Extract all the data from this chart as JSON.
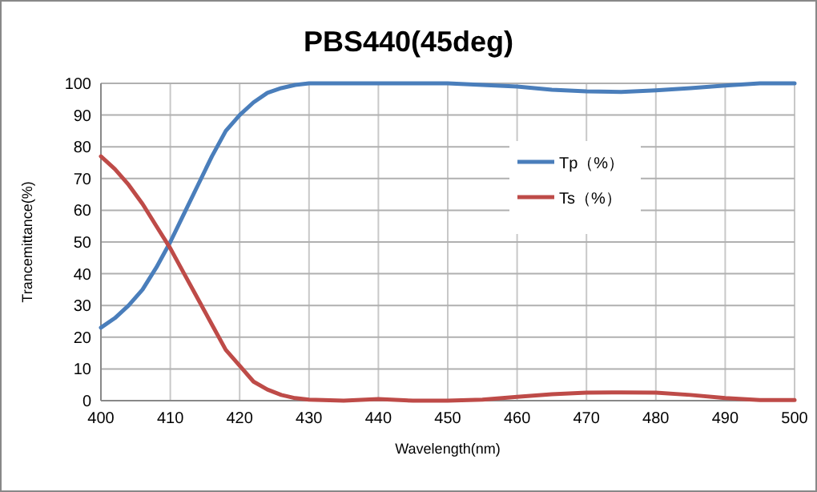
{
  "chart_data": {
    "type": "line",
    "title": "PBS440(45deg)",
    "xlabel": "Wavelength(nm)",
    "ylabel": "Trancemittance(%)",
    "x": [
      400,
      402,
      404,
      406,
      408,
      410,
      412,
      414,
      416,
      418,
      420,
      422,
      424,
      426,
      428,
      430,
      435,
      440,
      445,
      450,
      455,
      460,
      465,
      470,
      475,
      480,
      485,
      490,
      495,
      500
    ],
    "series": [
      {
        "name": "Tp（%）",
        "color": "#4a7ebb",
        "values": [
          23,
          26,
          30,
          35,
          42,
          50,
          59,
          68,
          77,
          85,
          90,
          94,
          97,
          98.5,
          99.5,
          100,
          100,
          100,
          100,
          100,
          99.5,
          99,
          98,
          97.5,
          97.3,
          97.8,
          98.5,
          99.3,
          100,
          100
        ]
      },
      {
        "name": "Ts（%）",
        "color": "#be4b48",
        "values": [
          77,
          73,
          68,
          62,
          55,
          48,
          40,
          32,
          24,
          16,
          11,
          6,
          3.5,
          1.8,
          0.8,
          0.3,
          0,
          0.5,
          0,
          0,
          0.3,
          1.2,
          2,
          2.5,
          2.6,
          2.5,
          1.8,
          0.8,
          0.2,
          0.2
        ]
      }
    ],
    "xlim": [
      400,
      500
    ],
    "ylim": [
      0,
      100
    ],
    "xticks": [
      400,
      410,
      420,
      430,
      440,
      450,
      460,
      470,
      480,
      490,
      500
    ],
    "yticks": [
      0,
      10,
      20,
      30,
      40,
      50,
      60,
      70,
      80,
      90,
      100
    ],
    "grid": true,
    "legend": "right",
    "marker": "none",
    "line_style": "solid"
  }
}
